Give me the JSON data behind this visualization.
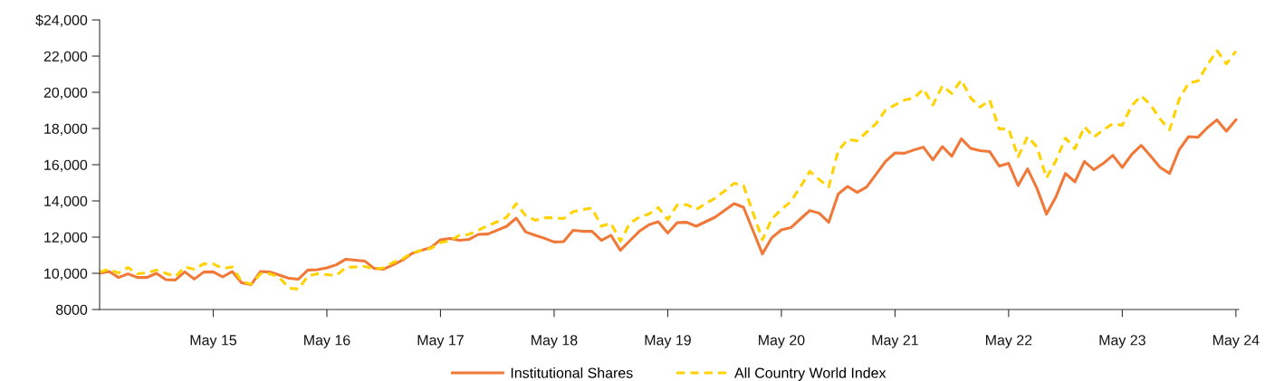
{
  "chart_data": {
    "type": "line",
    "categories": [
      null,
      null,
      null,
      null,
      null,
      null,
      null,
      null,
      null,
      null,
      null,
      null,
      "May 15",
      null,
      null,
      null,
      null,
      null,
      null,
      null,
      null,
      null,
      null,
      null,
      "May 16",
      null,
      null,
      null,
      null,
      null,
      null,
      null,
      null,
      null,
      null,
      null,
      "May 17",
      null,
      null,
      null,
      null,
      null,
      null,
      null,
      null,
      null,
      null,
      null,
      "May 18",
      null,
      null,
      null,
      null,
      null,
      null,
      null,
      null,
      null,
      null,
      null,
      "May 19",
      null,
      null,
      null,
      null,
      null,
      null,
      null,
      null,
      null,
      null,
      null,
      "May 20",
      null,
      null,
      null,
      null,
      null,
      null,
      null,
      null,
      null,
      null,
      null,
      "May 21",
      null,
      null,
      null,
      null,
      null,
      null,
      null,
      null,
      null,
      null,
      null,
      "May 22",
      null,
      null,
      null,
      null,
      null,
      null,
      null,
      null,
      null,
      null,
      null,
      "May 23",
      null,
      null,
      null,
      null,
      null,
      null,
      null,
      null,
      null,
      null,
      null,
      "May 24"
    ],
    "series": [
      {
        "name": "Institutional Shares",
        "color": "#f07838",
        "line_style": "solid",
        "values": [
          10000,
          10100,
          9770,
          9970,
          9770,
          9770,
          10000,
          9650,
          9630,
          10080,
          9680,
          10070,
          10080,
          9800,
          10100,
          9480,
          9370,
          10100,
          10070,
          9900,
          9720,
          9680,
          10180,
          10200,
          10300,
          10470,
          10780,
          10730,
          10680,
          10270,
          10230,
          10470,
          10730,
          11100,
          11270,
          11430,
          11850,
          11930,
          11820,
          11870,
          12150,
          12170,
          12380,
          12600,
          13050,
          12280,
          12100,
          11930,
          11730,
          11750,
          12370,
          12320,
          12320,
          11820,
          12100,
          11270,
          11800,
          12320,
          12680,
          12850,
          12220,
          12800,
          12820,
          12600,
          12850,
          13100,
          13470,
          13850,
          13650,
          12360,
          11070,
          11970,
          12400,
          12520,
          13000,
          13470,
          13320,
          12820,
          14380,
          14800,
          14470,
          14770,
          15470,
          16180,
          16650,
          16630,
          16820,
          16970,
          16270,
          17000,
          16470,
          17430,
          16900,
          16770,
          16720,
          15930,
          16070,
          14850,
          15770,
          14680,
          13270,
          14230,
          15520,
          15050,
          16180,
          15720,
          16070,
          16520,
          15850,
          16570,
          17070,
          16470,
          15850,
          15520,
          16820,
          17550,
          17520,
          18050,
          18480,
          17850,
          18480
        ]
      },
      {
        "name": "All Country World Index",
        "color": "#ffd200",
        "line_style": "dashed",
        "values": [
          10070,
          10220,
          10020,
          10320,
          9970,
          10020,
          10180,
          10000,
          9820,
          10350,
          10230,
          10520,
          10520,
          10270,
          10350,
          9550,
          9400,
          9980,
          9970,
          9770,
          9180,
          9130,
          9850,
          9970,
          9930,
          9880,
          10320,
          10350,
          10380,
          10230,
          10300,
          10600,
          10800,
          11130,
          11270,
          11380,
          11700,
          11800,
          12100,
          12150,
          12380,
          12630,
          12850,
          13100,
          13850,
          13180,
          12930,
          13070,
          13070,
          13020,
          13400,
          13520,
          13600,
          12600,
          12770,
          11770,
          12770,
          13100,
          13270,
          13630,
          12970,
          13770,
          13800,
          13520,
          13850,
          14150,
          14550,
          14970,
          14850,
          13350,
          11850,
          13020,
          13520,
          13970,
          14770,
          15630,
          15180,
          14770,
          16770,
          17400,
          17320,
          17800,
          18270,
          19020,
          19300,
          19570,
          19680,
          20180,
          19300,
          20350,
          19930,
          20680,
          19680,
          19180,
          19570,
          17980,
          17980,
          16430,
          17550,
          16970,
          15270,
          16230,
          17470,
          16880,
          18100,
          17520,
          17930,
          18270,
          18180,
          19270,
          19800,
          19300,
          18520,
          17930,
          19600,
          20520,
          20630,
          21520,
          22300,
          21570,
          22270
        ]
      }
    ],
    "ylim": [
      8000,
      24000
    ],
    "yticks": [
      8000,
      {
        "value": 10000,
        "label": "10,000"
      },
      {
        "value": 12000,
        "label": "12,000"
      },
      {
        "value": 14000,
        "label": "14,000"
      },
      {
        "value": 16000,
        "label": "16,000"
      },
      {
        "value": 18000,
        "label": "18,000"
      },
      {
        "value": 20000,
        "label": "20,000"
      },
      {
        "value": 22000,
        "label": "22,000"
      },
      {
        "value": 24000,
        "label": "$24,000"
      }
    ],
    "grid": false,
    "legend": "bottom",
    "marker": "none"
  }
}
